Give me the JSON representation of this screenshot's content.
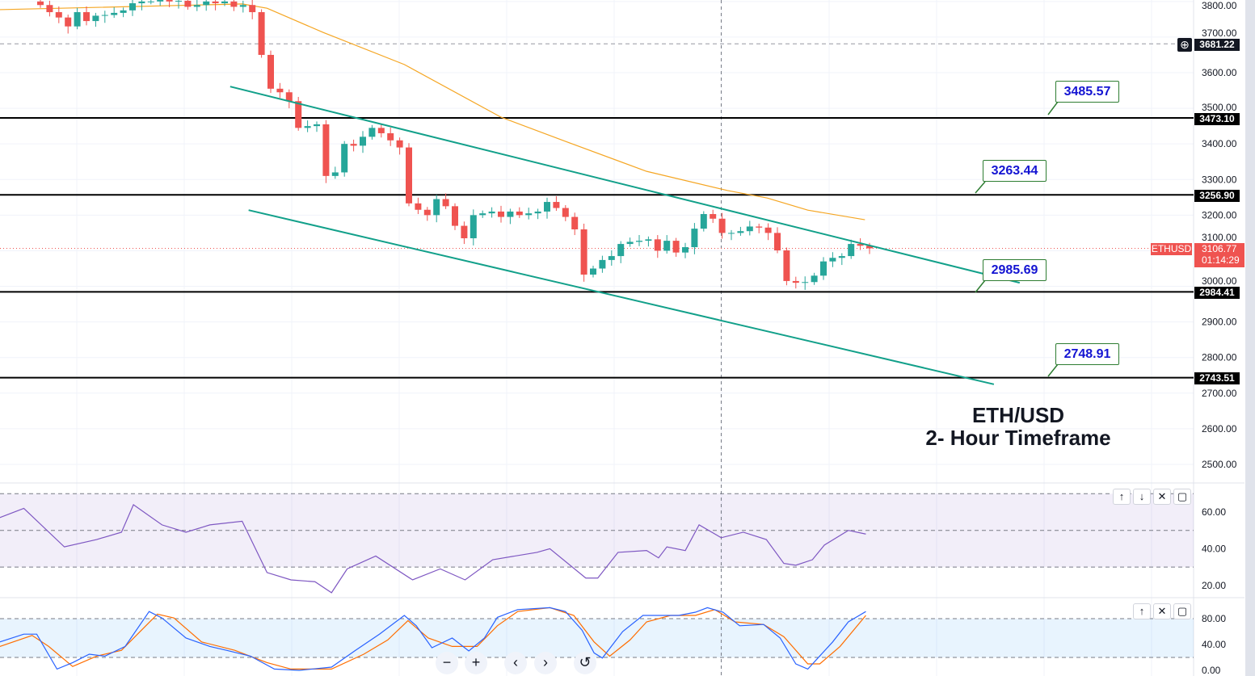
{
  "chart_data": {
    "type": "candlestick",
    "symbol": "ETHUSD",
    "title_line1": "ETH/USD",
    "title_line2": "2- Hour Timeframe",
    "colors": {
      "up": "#26a69a",
      "down": "#ef5350",
      "ma": "#f5a623",
      "trend": "#12a08a",
      "rsi": "#7e57c2",
      "stoch_k": "#2962ff",
      "stoch_d": "#ff6d00"
    },
    "price_ticks": [
      3800,
      3700,
      3600,
      3500,
      3400,
      3300,
      3200,
      3100,
      3000,
      2900,
      2800,
      2700,
      2600,
      2500
    ],
    "closes": [
      3790,
      3770,
      3755,
      3730,
      3770,
      3745,
      3760,
      3762,
      3768,
      3775,
      3795,
      3800,
      3800,
      3805,
      3800,
      3802,
      3785,
      3790,
      3800,
      3795,
      3800,
      3785,
      3790,
      3770,
      3650,
      3555,
      3545,
      3520,
      3445,
      3450,
      3455,
      3310,
      3320,
      3400,
      3395,
      3420,
      3445,
      3430,
      3410,
      3390,
      3233,
      3215,
      3200,
      3245,
      3225,
      3170,
      3135,
      3200,
      3205,
      3210,
      3195,
      3210,
      3200,
      3205,
      3210,
      3237,
      3220,
      3195,
      3160,
      3033,
      3050,
      3074,
      3085,
      3119,
      3125,
      3128,
      3132,
      3100,
      3128,
      3095,
      3110,
      3162,
      3203,
      3190,
      3150,
      3150,
      3155,
      3168,
      3165,
      3150,
      3101,
      3015,
      3010,
      3012,
      3030,
      3070,
      3080,
      3085,
      3119,
      3114,
      3106.77
    ],
    "moving_average": [
      [
        -4.4,
        3777
      ],
      [
        21.9,
        3793
      ],
      [
        24.6,
        3781
      ],
      [
        30.7,
        3713
      ],
      [
        39.5,
        3623
      ],
      [
        50,
        3475
      ],
      [
        57,
        3407
      ],
      [
        65.8,
        3323
      ],
      [
        74.6,
        3269
      ],
      [
        78.9,
        3248
      ],
      [
        83.3,
        3214
      ],
      [
        89.5,
        3187
      ]
    ],
    "trendlines": [
      {
        "name": "upper-channel",
        "from": [
          20.6,
          3561
        ],
        "to": [
          106.3,
          3010
        ]
      },
      {
        "name": "lower-channel",
        "from": [
          22.6,
          3214
        ],
        "to": [
          103.5,
          2725
        ]
      }
    ],
    "horizontal_levels": [
      {
        "price": 3473.1,
        "label": "3473.10"
      },
      {
        "price": 3256.9,
        "label": "3256.90"
      },
      {
        "price": 2984.41,
        "label": "2984.41"
      },
      {
        "price": 2743.51,
        "label": "2743.51"
      }
    ],
    "dashed_level": {
      "price": 3681.22,
      "label": "3681.22"
    },
    "last_price": {
      "price": 3106.77,
      "label": "3106.77",
      "countdown": "01:14:29"
    },
    "callouts": [
      "3485.57",
      "3263.44",
      "2985.69",
      "2748.91"
    ],
    "crosshair_bar": 73.9,
    "rsi": {
      "ticks": [
        "60.00",
        "40.00",
        "20.00"
      ],
      "band": [
        30,
        70
      ],
      "mid": 50,
      "points": [
        [
          -4.4,
          57
        ],
        [
          -1.8,
          62
        ],
        [
          2.6,
          41
        ],
        [
          6.1,
          45
        ],
        [
          8.8,
          49
        ],
        [
          10.1,
          64
        ],
        [
          13.2,
          53
        ],
        [
          15.8,
          49
        ],
        [
          18.4,
          53
        ],
        [
          21.9,
          55
        ],
        [
          24.6,
          27
        ],
        [
          27.2,
          23
        ],
        [
          29.8,
          22
        ],
        [
          31.6,
          16
        ],
        [
          33.3,
          29
        ],
        [
          36.4,
          36
        ],
        [
          40.4,
          23
        ],
        [
          43.4,
          29
        ],
        [
          46.1,
          23
        ],
        [
          49.1,
          34
        ],
        [
          53.9,
          38
        ],
        [
          55.3,
          40
        ],
        [
          59.2,
          24
        ],
        [
          60.5,
          24
        ],
        [
          62.7,
          38
        ],
        [
          65.8,
          39
        ],
        [
          67.1,
          35
        ],
        [
          68,
          41
        ],
        [
          70,
          39
        ],
        [
          71.5,
          53
        ],
        [
          73.9,
          46
        ],
        [
          76.3,
          49
        ],
        [
          78.8,
          45
        ],
        [
          80.7,
          32
        ],
        [
          82,
          31
        ],
        [
          83.8,
          34
        ],
        [
          85.1,
          42
        ],
        [
          87.7,
          50
        ],
        [
          89.6,
          48
        ]
      ]
    },
    "stoch": {
      "ticks": [
        "80.00",
        "40.00",
        "0.00"
      ],
      "band": [
        20,
        80
      ],
      "k": [
        [
          -4.4,
          44
        ],
        [
          -1.8,
          56
        ],
        [
          -0.4,
          56
        ],
        [
          1.8,
          2
        ],
        [
          3.5,
          12
        ],
        [
          5.3,
          25
        ],
        [
          7,
          22
        ],
        [
          9.2,
          37
        ],
        [
          11.8,
          91
        ],
        [
          13.2,
          81
        ],
        [
          15.8,
          50
        ],
        [
          18.4,
          37
        ],
        [
          20.2,
          31
        ],
        [
          22.8,
          22
        ],
        [
          25.4,
          2
        ],
        [
          28.1,
          0
        ],
        [
          31.6,
          5
        ],
        [
          34.2,
          31
        ],
        [
          36.8,
          56
        ],
        [
          39.5,
          85
        ],
        [
          40.8,
          69
        ],
        [
          42.5,
          35
        ],
        [
          44.7,
          50
        ],
        [
          46.5,
          30
        ],
        [
          48.2,
          50
        ],
        [
          49.6,
          82
        ],
        [
          51.8,
          94
        ],
        [
          55.3,
          97
        ],
        [
          57,
          91
        ],
        [
          58.8,
          62
        ],
        [
          60.1,
          27
        ],
        [
          61,
          19
        ],
        [
          63.2,
          60
        ],
        [
          65.4,
          85
        ],
        [
          67.5,
          85
        ],
        [
          69.3,
          85
        ],
        [
          71.1,
          90
        ],
        [
          72.4,
          97
        ],
        [
          74.1,
          90
        ],
        [
          75.9,
          69
        ],
        [
          78.5,
          71
        ],
        [
          80.3,
          50
        ],
        [
          82,
          10
        ],
        [
          83.3,
          2
        ],
        [
          86,
          44
        ],
        [
          87.7,
          75
        ],
        [
          89.6,
          91
        ]
      ],
      "d": [
        [
          -4.4,
          37
        ],
        [
          -0.9,
          54
        ],
        [
          0.9,
          37
        ],
        [
          3.5,
          6
        ],
        [
          6.1,
          22
        ],
        [
          8.8,
          31
        ],
        [
          12.7,
          87
        ],
        [
          14.5,
          81
        ],
        [
          17.5,
          44
        ],
        [
          21.1,
          31
        ],
        [
          24.6,
          12
        ],
        [
          27.2,
          2
        ],
        [
          31.6,
          2
        ],
        [
          35.1,
          25
        ],
        [
          37.7,
          47
        ],
        [
          39.9,
          77
        ],
        [
          42.1,
          50
        ],
        [
          44.7,
          37
        ],
        [
          47.4,
          37
        ],
        [
          49.6,
          69
        ],
        [
          51.8,
          91
        ],
        [
          55.3,
          97
        ],
        [
          57.9,
          85
        ],
        [
          60.1,
          44
        ],
        [
          61.8,
          22
        ],
        [
          64,
          47
        ],
        [
          65.8,
          75
        ],
        [
          68.4,
          85
        ],
        [
          71.1,
          85
        ],
        [
          73.2,
          94
        ],
        [
          75.4,
          75
        ],
        [
          78.5,
          71
        ],
        [
          80.7,
          52
        ],
        [
          83.3,
          10
        ],
        [
          84.6,
          10
        ],
        [
          86.8,
          37
        ],
        [
          89.6,
          85
        ]
      ]
    }
  },
  "nav": {
    "zoom_out": "−",
    "zoom_in": "+",
    "back": "‹",
    "forward": "›",
    "reset": "↺"
  },
  "pane_buttons": {
    "up": "↑",
    "down": "↓",
    "close": "✕",
    "maximize": "▢"
  }
}
